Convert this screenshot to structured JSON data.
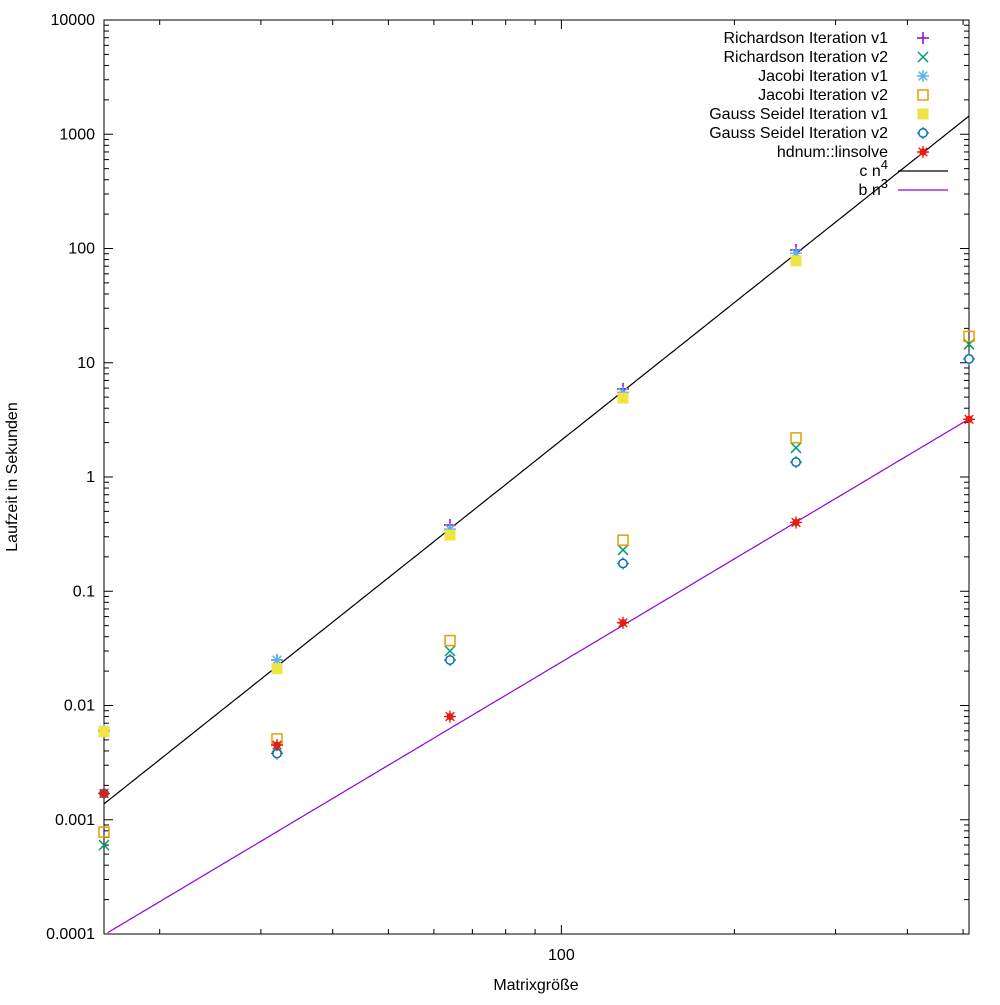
{
  "chart_data": {
    "type": "scatter",
    "title": "",
    "xlabel": "Matrixgröße",
    "ylabel": "Laufzeit in Sekunden",
    "x_scale": "log",
    "y_scale": "log",
    "xlim": [
      16,
      512
    ],
    "ylim": [
      0.0001,
      10000
    ],
    "grid": false,
    "legend_position": "top-right-inside",
    "x_major_ticks": [
      {
        "value": 100,
        "label": "100"
      }
    ],
    "y_major_ticks": [
      {
        "value": 10000,
        "label": "10000"
      },
      {
        "value": 1000,
        "label": "1000"
      },
      {
        "value": 100,
        "label": "100"
      },
      {
        "value": 10,
        "label": "10"
      },
      {
        "value": 1,
        "label": "1"
      },
      {
        "value": 0.1,
        "label": "0.1"
      },
      {
        "value": 0.01,
        "label": "0.01"
      },
      {
        "value": 0.001,
        "label": "0.001"
      },
      {
        "value": 0.0001,
        "label": "0.0001"
      }
    ],
    "x": [
      16,
      32,
      64,
      128,
      256,
      512
    ],
    "series": [
      {
        "name": "Richardson Iteration v1",
        "marker": "plus",
        "color": "#9400d3",
        "values": [
          0.006,
          0.025,
          0.38,
          5.9,
          97,
          null
        ]
      },
      {
        "name": "Richardson Iteration v2",
        "marker": "cross",
        "color": "#009e73",
        "values": [
          0.0006,
          0.0043,
          0.03,
          0.23,
          1.8,
          14.5
        ]
      },
      {
        "name": "Jacobi Iteration v1",
        "marker": "asterisk",
        "color": "#56b4e9",
        "values": [
          0.0061,
          0.025,
          0.35,
          5.5,
          91,
          null
        ]
      },
      {
        "name": "Jacobi Iteration v2",
        "marker": "square-open",
        "color": "#e69f00",
        "values": [
          0.00078,
          0.0051,
          0.037,
          0.28,
          2.2,
          17
        ]
      },
      {
        "name": "Gauss Seidel Iteration v1",
        "marker": "square-filled",
        "color": "#f0e442",
        "values": [
          0.0059,
          0.021,
          0.31,
          4.9,
          78,
          null
        ]
      },
      {
        "name": "Gauss Seidel Iteration v2",
        "marker": "circle-open",
        "color": "#0072b2",
        "values": [
          0.0017,
          0.0038,
          0.025,
          0.175,
          1.35,
          10.8
        ]
      },
      {
        "name": "hdnum::linsolve",
        "marker": "circle-filled",
        "color": "#e51e10",
        "values": [
          0.0017,
          0.0045,
          0.008,
          0.053,
          0.4,
          3.2
        ]
      }
    ],
    "reference_lines": [
      {
        "label": "c n",
        "sup": "4",
        "coefficient": 2.1e-08,
        "exponent": 4,
        "color": "#000000"
      },
      {
        "label": "b n",
        "sup": "3",
        "coefficient": 2.4e-08,
        "exponent": 3,
        "color": "#9400d3"
      }
    ]
  }
}
